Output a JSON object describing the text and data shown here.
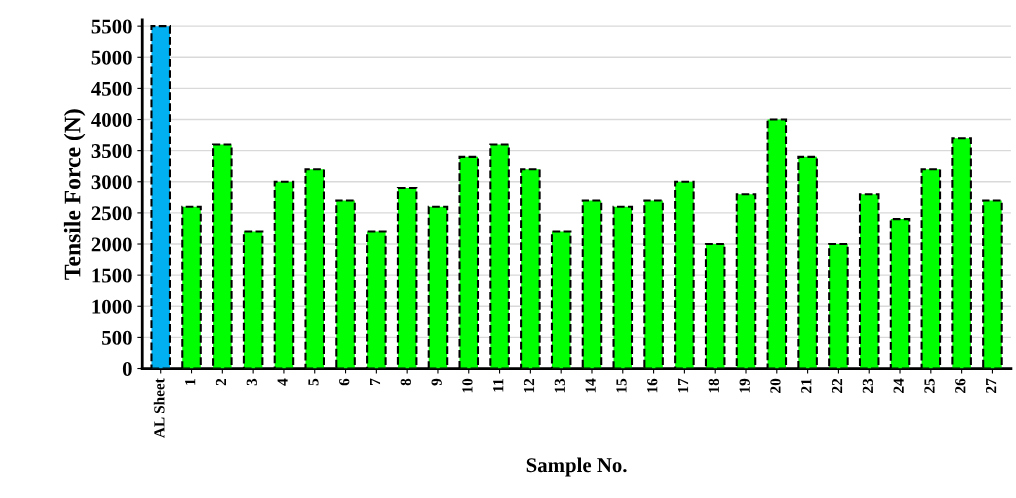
{
  "chart_data": {
    "type": "bar",
    "xlabel": "Sample No.",
    "ylabel": "Tensile Force (N)",
    "categories": [
      "AL Sheet",
      "1",
      "2",
      "3",
      "4",
      "5",
      "6",
      "7",
      "8",
      "9",
      "10",
      "11",
      "12",
      "13",
      "14",
      "15",
      "16",
      "17",
      "18",
      "19",
      "20",
      "21",
      "22",
      "23",
      "24",
      "25",
      "26",
      "27"
    ],
    "values": [
      5500,
      2600,
      3600,
      2200,
      3000,
      3200,
      2700,
      2200,
      2900,
      2600,
      3400,
      3600,
      3200,
      2200,
      2700,
      2600,
      2700,
      3000,
      2000,
      2800,
      4000,
      3400,
      2000,
      2800,
      2400,
      3200,
      3700,
      2700
    ],
    "colors": [
      "#00b0f0",
      "#00ff00",
      "#00ff00",
      "#00ff00",
      "#00ff00",
      "#00ff00",
      "#00ff00",
      "#00ff00",
      "#00ff00",
      "#00ff00",
      "#00ff00",
      "#00ff00",
      "#00ff00",
      "#00ff00",
      "#00ff00",
      "#00ff00",
      "#00ff00",
      "#00ff00",
      "#00ff00",
      "#00ff00",
      "#00ff00",
      "#00ff00",
      "#00ff00",
      "#00ff00",
      "#00ff00",
      "#00ff00",
      "#00ff00",
      "#00ff00"
    ],
    "ylim": [
      0,
      5600
    ],
    "yticks": [
      0,
      500,
      1000,
      1500,
      2000,
      2500,
      3000,
      3500,
      4000,
      4500,
      5000,
      5500
    ],
    "grid": "y",
    "line_style": "dashed"
  }
}
